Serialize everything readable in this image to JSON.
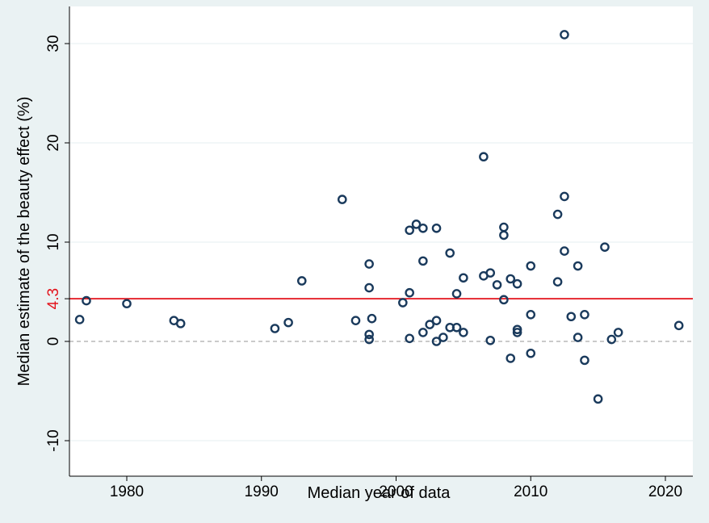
{
  "chart_data": {
    "type": "scatter",
    "title": "",
    "xlabel": "Median year of data",
    "ylabel": "Median estimate of the beauty effect (%)",
    "xlim": [
      1976,
      2022
    ],
    "ylim": [
      -11,
      32
    ],
    "x_ticks": [
      1980,
      1990,
      2000,
      2010,
      2020
    ],
    "y_ticks": [
      -10,
      0,
      10,
      20,
      30
    ],
    "grid": true,
    "legend": "none",
    "reference_lines": [
      {
        "value": 4.3,
        "label": "4.3",
        "color": "#e3121b",
        "style": "solid"
      },
      {
        "value": 0,
        "label": "",
        "color": "#aaaaaa",
        "style": "dashed"
      }
    ],
    "marker_color": "#1a3a5c",
    "points": [
      {
        "x": 1976.5,
        "y": 2.2
      },
      {
        "x": 1977,
        "y": 4.1
      },
      {
        "x": 1980,
        "y": 3.8
      },
      {
        "x": 1983.5,
        "y": 2.1
      },
      {
        "x": 1984,
        "y": 1.8
      },
      {
        "x": 1991,
        "y": 1.3
      },
      {
        "x": 1992,
        "y": 1.9
      },
      {
        "x": 1993,
        "y": 6.1
      },
      {
        "x": 1996,
        "y": 14.3
      },
      {
        "x": 1997,
        "y": 2.1
      },
      {
        "x": 1998,
        "y": 7.8
      },
      {
        "x": 1998,
        "y": 5.4
      },
      {
        "x": 1998,
        "y": 0.7
      },
      {
        "x": 1998,
        "y": 0.2
      },
      {
        "x": 1998.2,
        "y": 2.3
      },
      {
        "x": 2000.5,
        "y": 3.9
      },
      {
        "x": 2001,
        "y": 11.2
      },
      {
        "x": 2001,
        "y": 4.9
      },
      {
        "x": 2001,
        "y": 0.3
      },
      {
        "x": 2001.5,
        "y": 11.8
      },
      {
        "x": 2002,
        "y": 11.4
      },
      {
        "x": 2002,
        "y": 8.1
      },
      {
        "x": 2002,
        "y": 0.9
      },
      {
        "x": 2002.5,
        "y": 1.7
      },
      {
        "x": 2003,
        "y": 11.4
      },
      {
        "x": 2003,
        "y": 2.1
      },
      {
        "x": 2003,
        "y": 0.0
      },
      {
        "x": 2003.5,
        "y": 0.4
      },
      {
        "x": 2004,
        "y": 8.9
      },
      {
        "x": 2004,
        "y": 1.4
      },
      {
        "x": 2004.5,
        "y": 4.8
      },
      {
        "x": 2004.5,
        "y": 1.4
      },
      {
        "x": 2005,
        "y": 6.4
      },
      {
        "x": 2005,
        "y": 0.9
      },
      {
        "x": 2006.5,
        "y": 18.6
      },
      {
        "x": 2006.5,
        "y": 6.6
      },
      {
        "x": 2007,
        "y": 6.9
      },
      {
        "x": 2007,
        "y": 0.1
      },
      {
        "x": 2007.5,
        "y": 5.7
      },
      {
        "x": 2008,
        "y": 11.5
      },
      {
        "x": 2008,
        "y": 10.7
      },
      {
        "x": 2008,
        "y": 4.2
      },
      {
        "x": 2008.5,
        "y": 6.3
      },
      {
        "x": 2008.5,
        "y": -1.7
      },
      {
        "x": 2009,
        "y": 5.8
      },
      {
        "x": 2009,
        "y": 1.2
      },
      {
        "x": 2009,
        "y": 0.9
      },
      {
        "x": 2010,
        "y": 7.6
      },
      {
        "x": 2010,
        "y": 2.7
      },
      {
        "x": 2010,
        "y": -1.2
      },
      {
        "x": 2012,
        "y": 12.8
      },
      {
        "x": 2012,
        "y": 6.0
      },
      {
        "x": 2012.5,
        "y": 30.9
      },
      {
        "x": 2012.5,
        "y": 14.6
      },
      {
        "x": 2012.5,
        "y": 9.1
      },
      {
        "x": 2013,
        "y": 2.5
      },
      {
        "x": 2013.5,
        "y": 7.6
      },
      {
        "x": 2013.5,
        "y": 0.4
      },
      {
        "x": 2014,
        "y": 2.7
      },
      {
        "x": 2014,
        "y": -1.9
      },
      {
        "x": 2015,
        "y": -5.8
      },
      {
        "x": 2015.5,
        "y": 9.5
      },
      {
        "x": 2016,
        "y": 0.2
      },
      {
        "x": 2016.5,
        "y": 0.9
      },
      {
        "x": 2021,
        "y": 1.6
      }
    ]
  }
}
